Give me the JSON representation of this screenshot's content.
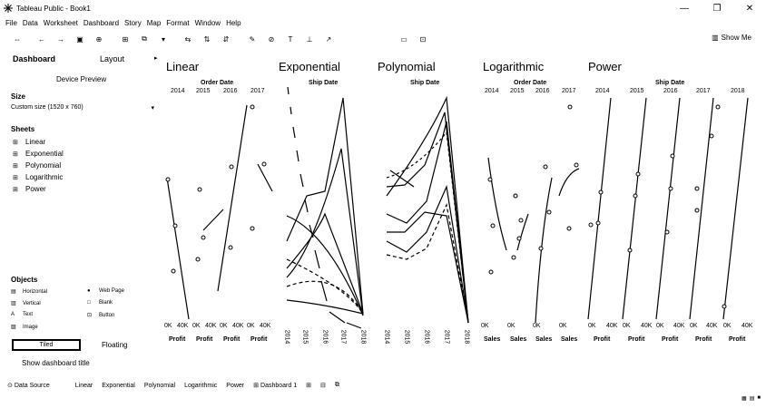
{
  "window": {
    "title": "Tableau Public - Book1",
    "controls": [
      "—",
      "❐",
      "✕"
    ]
  },
  "menu": [
    "File",
    "Data",
    "Worksheet",
    "Dashboard",
    "Story",
    "Map",
    "Format",
    "Window",
    "Help"
  ],
  "toolbar": {
    "show_me": "Show Me"
  },
  "left_panel": {
    "tab_dashboard": "Dashboard",
    "tab_layout": "Layout",
    "device_preview": "Device Preview",
    "size_heading": "Size",
    "size_value": "Custom size (1520 x 760)",
    "sheets_heading": "Sheets",
    "sheets": [
      "Linear",
      "Exponential",
      "Polynomial",
      "Logarithmic",
      "Power"
    ],
    "objects_heading": "Objects",
    "objects": [
      "Horizontal",
      "Web Page",
      "Vertical",
      "Blank",
      "Text",
      "Button",
      "Image"
    ],
    "tiled": "Tiled",
    "floating": "Floating",
    "show_title": "Show dashboard title"
  },
  "dashboard": {
    "sheets": [
      {
        "title": "Linear",
        "header": "Order Date",
        "top_ticks": [
          "2014",
          "2015",
          "2016",
          "2017"
        ],
        "bottom_ticks": [
          "0K",
          "40K",
          "0K",
          "40K",
          "0K",
          "40K",
          "0K",
          "40K"
        ],
        "measures": [
          "Profit",
          "Profit",
          "Profit",
          "Profit"
        ]
      },
      {
        "title": "Exponential",
        "header": "Ship Date",
        "bottom_ticks": [
          "2014",
          "2015",
          "2016",
          "2017",
          "2018"
        ]
      },
      {
        "title": "Polynomial",
        "header": "Ship Date",
        "bottom_ticks": [
          "2014",
          "2015",
          "2016",
          "2017",
          "2018"
        ]
      },
      {
        "title": "Logarithmic",
        "header": "Order Date",
        "top_ticks": [
          "2014",
          "2015",
          "2016",
          "2017"
        ],
        "bottom_ticks": [
          "0K",
          "0K",
          "0K",
          "0K"
        ],
        "measures": [
          "Sales",
          "Sales",
          "Sales",
          "Sales"
        ]
      },
      {
        "title": "Power",
        "header": "Ship Date",
        "top_ticks": [
          "2014",
          "2015",
          "2016",
          "2017",
          "2018"
        ],
        "bottom_ticks": [
          "0K",
          "40K",
          "0K",
          "40K",
          "0K",
          "40K",
          "0K",
          "40K",
          "0K",
          "40K"
        ],
        "measures": [
          "Profit",
          "Profit",
          "Profit",
          "Profit",
          "Profit"
        ]
      }
    ]
  },
  "bottom_tabs": [
    "Data Source",
    "Linear",
    "Exponential",
    "Polynomial",
    "Logarithmic",
    "Power",
    "Dashboard 1"
  ],
  "colors": {
    "ink": "#000000",
    "background": "#ffffff"
  }
}
